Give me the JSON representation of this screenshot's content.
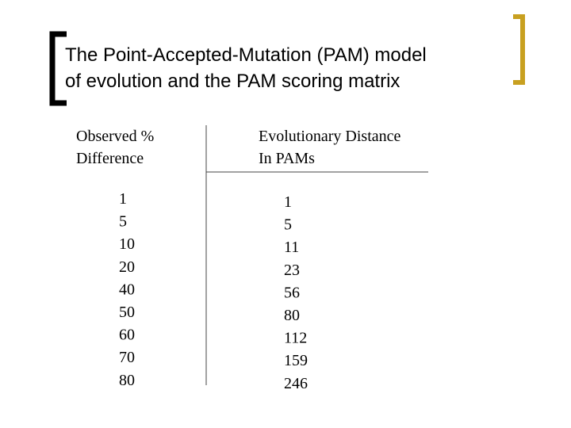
{
  "title": [
    "The Point-Accepted-Mutation (PAM) model",
    "of evolution and the PAM scoring matrix"
  ],
  "table": {
    "headers": [
      [
        "Observed %",
        "Difference"
      ],
      [
        "Evolutionary Distance",
        "In PAMs"
      ]
    ],
    "columns": [
      [
        1,
        5,
        10,
        20,
        40,
        50,
        60,
        70,
        80
      ],
      [
        1,
        5,
        11,
        23,
        56,
        80,
        112,
        159,
        246
      ]
    ]
  }
}
